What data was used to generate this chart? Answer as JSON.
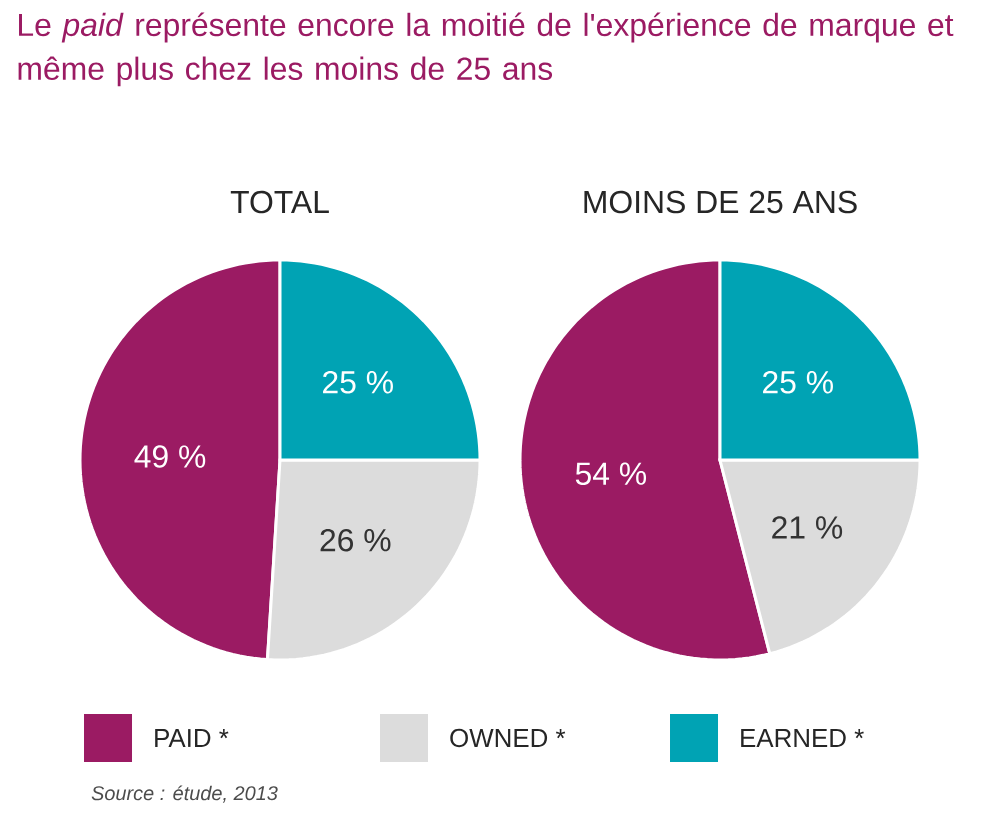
{
  "chart_data": [
    {
      "type": "pie",
      "title": "Le *paid* représente encore la moitié de l'expérience de marque et même plus chez les moins de 25 ans",
      "subtitle": "TOTAL",
      "categories": [
        "PAID *",
        "OWNED *",
        "EARNED *"
      ],
      "values": [
        49,
        26,
        25
      ],
      "colors": [
        "#9b1b63",
        "#dcdcdc",
        "#00a3b4"
      ],
      "value_labels": [
        "49 %",
        "26 %",
        "25 %"
      ],
      "legend": "bottom",
      "annotations": [
        "Source : étude, 2013"
      ]
    },
    {
      "type": "pie",
      "subtitle": "MOINS DE 25 ANS",
      "categories": [
        null,
        null,
        null
      ],
      "values": [
        54,
        21,
        25
      ],
      "colors": [
        "#9b1b63",
        "#dcdcdc",
        "#00a3b4"
      ],
      "value_labels": [
        "54 %",
        "21 %",
        "25 %"
      ]
    }
  ]
}
